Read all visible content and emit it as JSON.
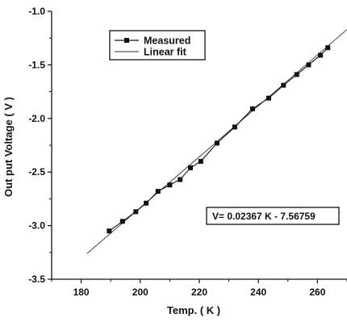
{
  "chart_data": {
    "type": "scatter",
    "xlabel": "Temp. ( K )",
    "ylabel": "Out put Voltage ( V )",
    "xlim": [
      170,
      270
    ],
    "ylim": [
      -3.5,
      -1.0
    ],
    "x_ticks": [
      180,
      200,
      220,
      240,
      260
    ],
    "y_ticks": [
      -3.5,
      -3.0,
      -2.5,
      -2.0,
      -1.5,
      -1.0
    ],
    "x_tick_labels": [
      "180",
      "200",
      "220",
      "240",
      "260"
    ],
    "y_tick_labels": [
      "-3.5",
      "-3.0",
      "-2.5",
      "-2.0",
      "-1.5",
      "-1.0"
    ],
    "grid": false,
    "legend": {
      "placement": "top-left",
      "entries": [
        {
          "label": "Measured",
          "marker": "square",
          "line": "solid"
        },
        {
          "label": "Linear fit",
          "marker": "none",
          "line": "thin"
        }
      ]
    },
    "series": [
      {
        "name": "Measured",
        "type": "line-scatter",
        "marker": "square",
        "color": "#111111",
        "x": [
          189.5,
          194,
          198.5,
          202,
          206,
          210,
          213.5,
          217,
          220.5,
          226,
          232,
          238,
          243.5,
          248.5,
          253,
          257,
          261,
          263.5
        ],
        "y": [
          -3.05,
          -2.96,
          -2.87,
          -2.79,
          -2.68,
          -2.62,
          -2.57,
          -2.46,
          -2.4,
          -2.23,
          -2.08,
          -1.91,
          -1.81,
          -1.69,
          -1.59,
          -1.5,
          -1.41,
          -1.34
        ]
      },
      {
        "name": "Linear fit",
        "type": "line",
        "color": "#333333",
        "x": [
          182,
          270
        ],
        "y": [
          -3.26,
          -1.17
        ]
      }
    ],
    "annotations": [
      {
        "text": "V= 0.02367 K - 7.56759"
      }
    ]
  }
}
